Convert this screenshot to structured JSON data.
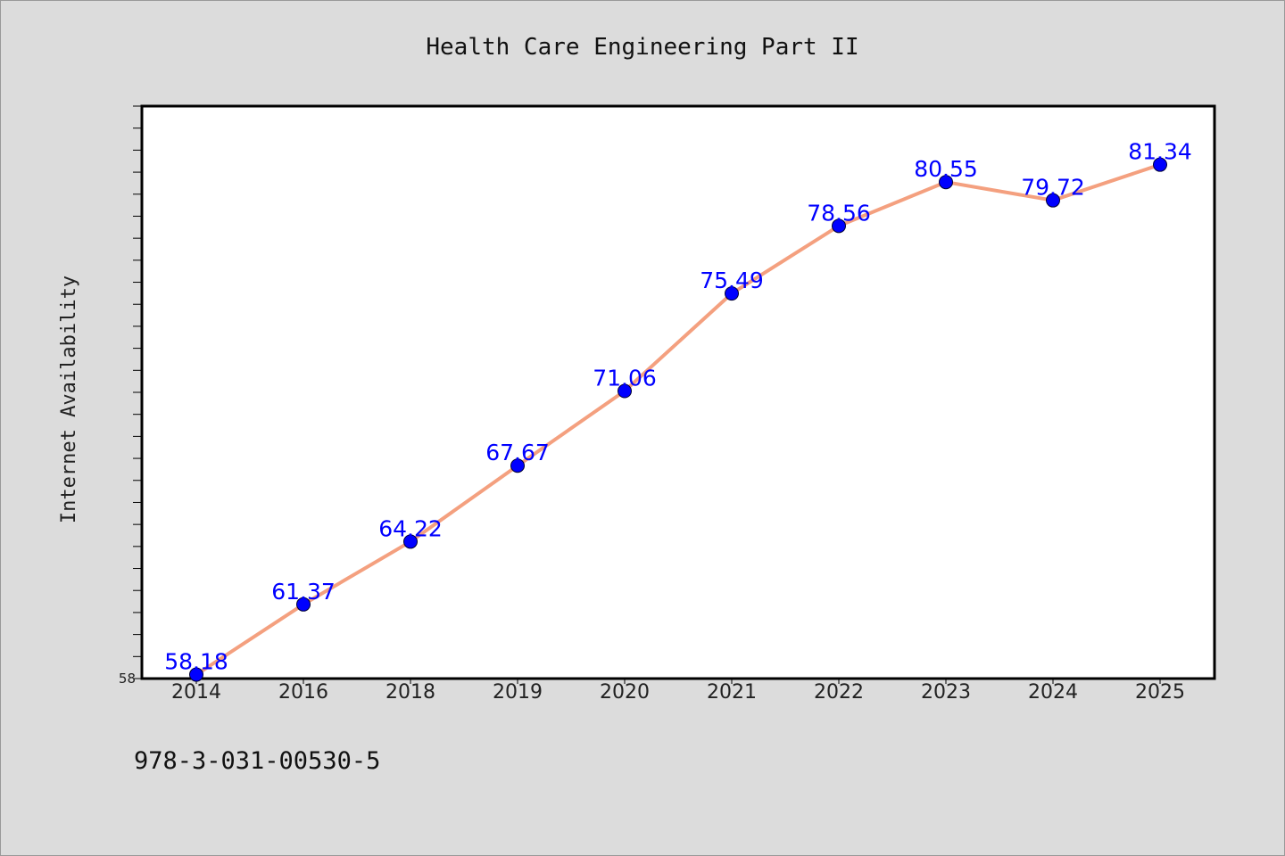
{
  "chart_data": {
    "type": "line",
    "title": "Health Care Engineering Part II",
    "xlabel": "",
    "ylabel": "Internet Availability",
    "categories": [
      "2014",
      "2016",
      "2018",
      "2019",
      "2020",
      "2021",
      "2022",
      "2023",
      "2024",
      "2025"
    ],
    "series": [
      {
        "values": [
          58.18,
          61.37,
          64.22,
          67.67,
          71.06,
          75.49,
          78.56,
          80.55,
          79.72,
          81.34
        ],
        "labels": [
          "58.18",
          "61.37",
          "64.22",
          "67.67",
          "71.06",
          "75.49",
          "78.56",
          "80.55",
          "79.72",
          "81.34"
        ]
      }
    ],
    "ylim": [
      58,
      84
    ],
    "y_tick_labels": [
      {
        "value": 58,
        "label": "58"
      }
    ],
    "y_minor_step": 1,
    "grid": false,
    "line_color": "#f4a07f",
    "marker_color": "#0000ff",
    "label_color": "#0000ff"
  },
  "footer": {
    "text": "978-3-031-00530-5"
  }
}
